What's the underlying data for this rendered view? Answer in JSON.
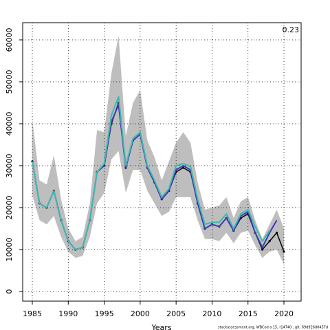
{
  "chart_data": {
    "type": "line",
    "x": [
      1985,
      1986,
      1987,
      1988,
      1989,
      1990,
      1991,
      1992,
      1993,
      1994,
      1995,
      1996,
      1997,
      1998,
      1999,
      2000,
      2001,
      2002,
      2003,
      2004,
      2005,
      2006,
      2007,
      2008,
      2009,
      2010,
      2011,
      2012,
      2013,
      2014,
      2015,
      2016,
      2017,
      2018,
      2019,
      2020
    ],
    "band": {
      "color": "#bebebe",
      "upper": [
        41000,
        26500,
        25500,
        32500,
        22000,
        15000,
        12000,
        13000,
        21000,
        38500,
        38000,
        52000,
        61000,
        37000,
        45000,
        48000,
        36000,
        32000,
        26500,
        31000,
        35500,
        38000,
        35500,
        26000,
        19500,
        20000,
        20500,
        22500,
        17500,
        21500,
        22500,
        17000,
        12500,
        16000,
        19500,
        15000
      ],
      "lower": [
        23000,
        17000,
        16000,
        18000,
        13000,
        9500,
        8000,
        8500,
        13000,
        21000,
        23500,
        31500,
        33500,
        23500,
        29000,
        29000,
        24000,
        21000,
        18000,
        19000,
        22500,
        22500,
        22500,
        17000,
        12500,
        12500,
        12000,
        14000,
        11500,
        14000,
        14500,
        11000,
        8000,
        9500,
        10000,
        6500
      ]
    },
    "series": [
      {
        "color": "#000000",
        "values": [
          31000,
          21000,
          20000,
          24000,
          17000,
          12000,
          10000,
          10500,
          17000,
          28500,
          30000,
          40000,
          45000,
          29500,
          36000,
          37500,
          29500,
          26000,
          22000,
          24000,
          28500,
          29500,
          28500,
          21000,
          15000,
          16000,
          15500,
          17500,
          14500,
          17500,
          18500,
          14000,
          10000,
          12000,
          14000,
          9500
        ]
      },
      {
        "color": "#3b3bb3",
        "values": [
          31000,
          21000,
          20000,
          24000,
          17000,
          12000,
          10000,
          10500,
          17000,
          28500,
          30000,
          40500,
          44500,
          29500,
          36000,
          37500,
          29500,
          26000,
          22000,
          24000,
          29000,
          30000,
          29000,
          21000,
          15000,
          16000,
          15500,
          17500,
          14500,
          18000,
          19000,
          14000,
          10500,
          14000,
          17000,
          null
        ]
      },
      {
        "color": "#3fb8af",
        "values": [
          31000,
          21000,
          20000,
          24000,
          17000,
          12000,
          10000,
          10500,
          17000,
          28500,
          30500,
          42000,
          46500,
          30000,
          36500,
          38000,
          30000,
          26500,
          22500,
          24500,
          30000,
          30500,
          29800,
          22000,
          16000,
          16500,
          16500,
          18500,
          15000,
          18500,
          19500,
          15500,
          12000,
          14500,
          null,
          null
        ]
      }
    ],
    "xlim": [
      1983.66,
      2022.39
    ],
    "ylim": [
      -2300,
      64100
    ],
    "xticks": [
      1985,
      1990,
      1995,
      2000,
      2005,
      2010,
      2015,
      2020
    ],
    "yticks": [
      0,
      10000,
      20000,
      30000,
      40000,
      50000,
      60000
    ],
    "grid": true,
    "xlabel": "Years",
    "annotation": "0.23",
    "footer": "stockassessment.org, WBCod ʙ 15, r14740 , git: 69d926d0437d"
  }
}
